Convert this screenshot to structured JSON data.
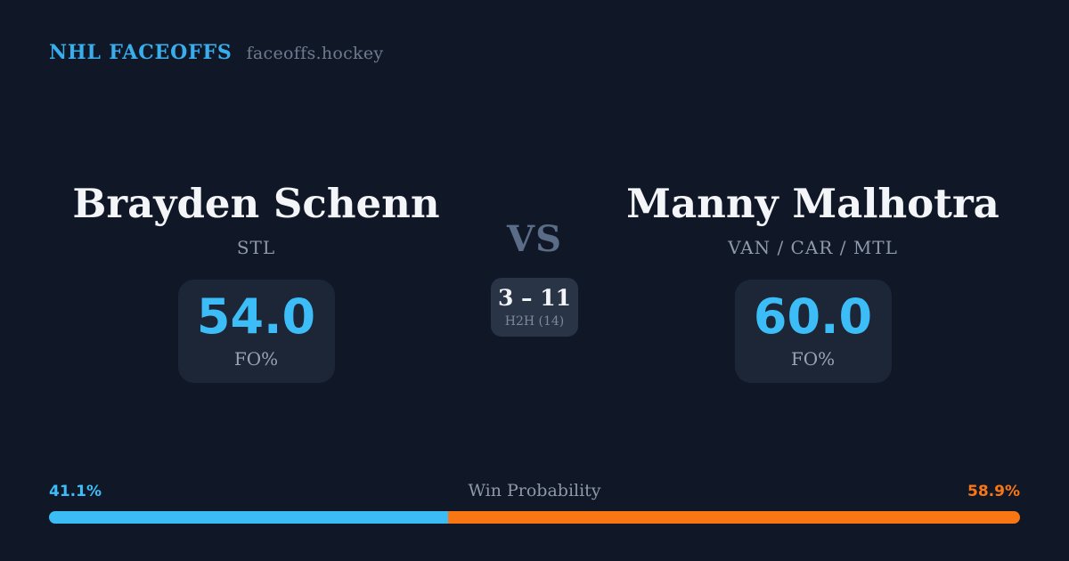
{
  "header": {
    "brand": "NHL FACEOFFS",
    "site": "faceoffs.hockey"
  },
  "matchup": {
    "player1": {
      "name": "Brayden Schenn",
      "teams": "STL",
      "fo_pct": "54.0",
      "stat_label": "FO%"
    },
    "vs_label": "VS",
    "h2h": {
      "score": "3 – 11",
      "label": "H2H (14)"
    },
    "player2": {
      "name": "Manny Malhotra",
      "teams": "VAN / CAR / MTL",
      "fo_pct": "60.0",
      "stat_label": "FO%"
    }
  },
  "win_probability": {
    "label": "Win Probability",
    "left_pct_label": "41.1%",
    "right_pct_label": "58.9%",
    "left_value": 41.1,
    "right_value": 58.9
  },
  "colors": {
    "background": "#101828",
    "brand_blue": "#38aeec",
    "accent_blue": "#3cbdf8",
    "accent_orange": "#f97614",
    "card_bg": "#1c2636",
    "h2h_card_bg": "#2a3447",
    "text_primary": "#f3f5f8",
    "text_muted": "#8e99ab"
  }
}
